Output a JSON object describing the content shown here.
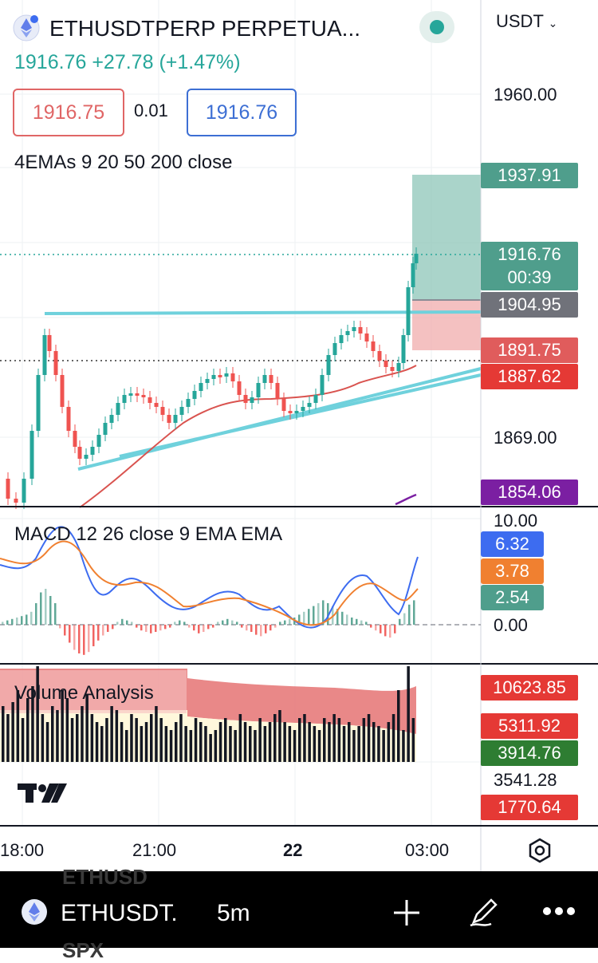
{
  "header": {
    "symbol_title": "ETHUSDTPERP PERPETUA...",
    "price": "1916.76",
    "change": "+27.78",
    "change_pct": "(+1.47%)",
    "bid": "1916.75",
    "spread": "0.01",
    "ask": "1916.76",
    "currency": "USDT"
  },
  "indicators": {
    "ema_label": "4EMAs 9 20 50 200 close",
    "macd_label": "MACD 12 26 close 9 EMA EMA",
    "volume_label": "Volume Analysis"
  },
  "price_axis": {
    "labels": [
      "1960.00",
      "1869.00"
    ],
    "tags": [
      {
        "text": "1937.91",
        "color": "#4f9e8c"
      },
      {
        "text": "1916.76",
        "color": "#4f9e8c"
      },
      {
        "text": "00:39",
        "color": "#4f9e8c"
      },
      {
        "text": "1904.95",
        "color": "#70727a"
      },
      {
        "text": "1891.75",
        "color": "#e05c5c"
      },
      {
        "text": "1887.62",
        "color": "#e53935"
      },
      {
        "text": "1854.06",
        "color": "#7b1fa2"
      }
    ]
  },
  "macd_axis": {
    "labels": [
      "10.00",
      "0.00"
    ],
    "tags": [
      {
        "text": "6.32",
        "color": "#3d6cf0"
      },
      {
        "text": "3.78",
        "color": "#f08030"
      },
      {
        "text": "2.54",
        "color": "#4f9e8c"
      }
    ]
  },
  "volume_axis": {
    "label": "3541.28",
    "tags": [
      {
        "text": "10623.85",
        "color": "#e53935"
      },
      {
        "text": "5311.92",
        "color": "#e53935"
      },
      {
        "text": "3914.76",
        "color": "#2e7d32"
      },
      {
        "text": "1770.64",
        "color": "#e53935"
      }
    ]
  },
  "time_axis": [
    "18:00",
    "21:00",
    "22",
    "03:00"
  ],
  "bottom_bar": {
    "symbol": "ETHUSDT.",
    "interval": "5m",
    "ghost_top": "ETHUSD",
    "ghost_bottom": "SPX"
  },
  "icons": {
    "settings": "hexagon-settings-icon",
    "add": "plus-icon",
    "draw": "pencil-icon",
    "more": "more-dots-icon",
    "logo": "tradingview-logo-icon"
  },
  "colors": {
    "up": "#26a69a",
    "down": "#ef5350",
    "bid": "#e06666",
    "ask": "#3d6fd4",
    "trendline": "#6fd1dc",
    "ema": "#e57373"
  }
}
